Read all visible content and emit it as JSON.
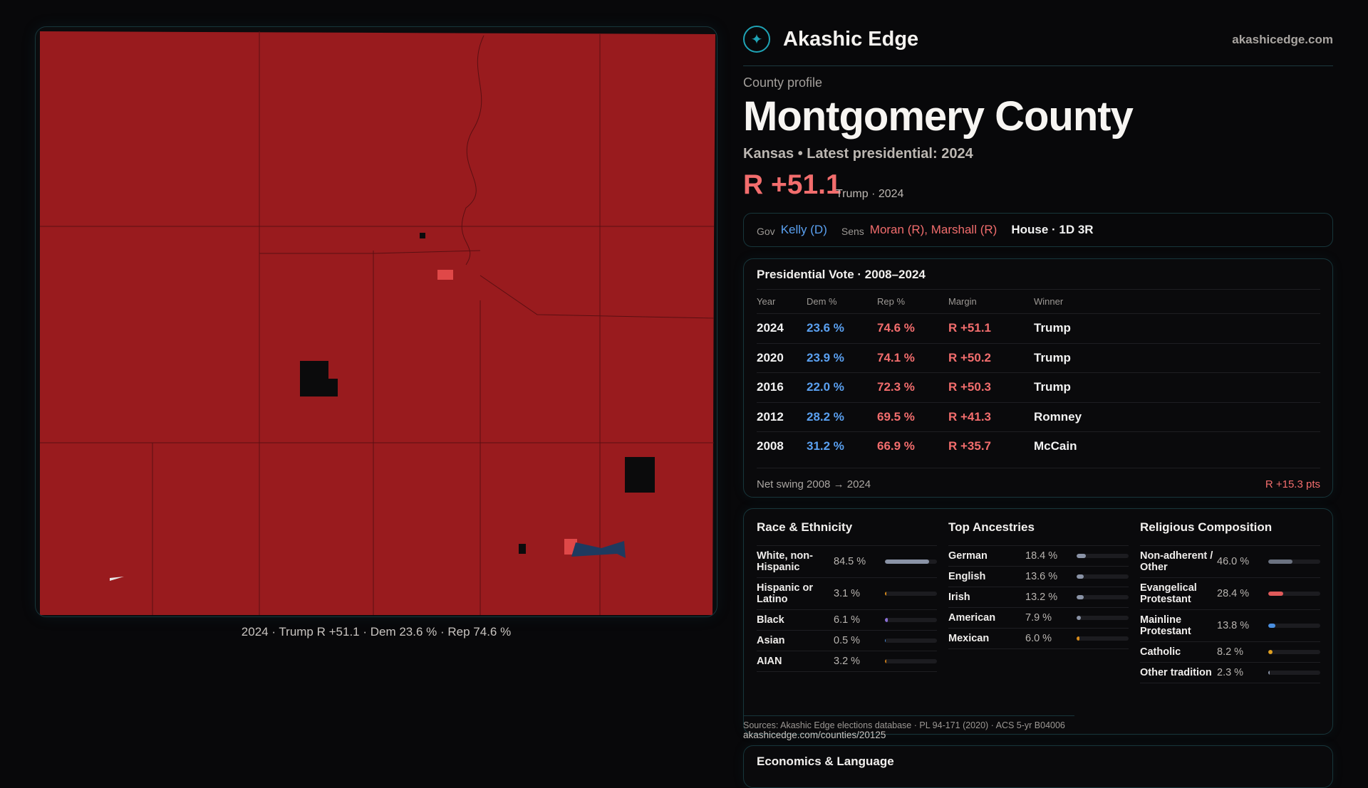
{
  "brand": {
    "name": "Akashic Edge",
    "site": "akashicedge.com",
    "logo_icon": "compass-emblem-icon",
    "accent": "#1fa3b5"
  },
  "profile": {
    "eyebrow": "County profile",
    "title": "Montgomery County",
    "subtitle": "Kansas • Latest presidential: 2024",
    "margin": "R +51.1",
    "margin_note": "Trump · 2024"
  },
  "officials": {
    "gov_label": "Gov",
    "gov": "Kelly (D)",
    "sens_label": "Sens",
    "sens": "Moran (R), Marshall (R)",
    "house": "House · 1D 3R"
  },
  "presidential": {
    "title": "Presidential Vote · 2008–2024",
    "headers": [
      "Year",
      "Dem %",
      "Rep %",
      "Margin",
      "Winner"
    ],
    "rows": [
      {
        "year": "2024",
        "dem": "23.6 %",
        "rep": "74.6 %",
        "margin": "R +51.1",
        "winner": "Trump"
      },
      {
        "year": "2020",
        "dem": "23.9 %",
        "rep": "74.1 %",
        "margin": "R +50.2",
        "winner": "Trump"
      },
      {
        "year": "2016",
        "dem": "22.0 %",
        "rep": "72.3 %",
        "margin": "R +50.3",
        "winner": "Trump"
      },
      {
        "year": "2012",
        "dem": "28.2 %",
        "rep": "69.5 %",
        "margin": "R +41.3",
        "winner": "Romney"
      },
      {
        "year": "2008",
        "dem": "31.2 %",
        "rep": "66.9 %",
        "margin": "R +35.7",
        "winner": "McCain"
      }
    ],
    "swing_label": "Net swing 2008 → 2024",
    "swing_value": "R +15.3 pts"
  },
  "demographics": [
    {
      "title": "Race & Ethnicity",
      "items": [
        {
          "label": "White, non-Hispanic",
          "value": "84.5 %",
          "pct": 84.5,
          "color": "#8a93a6"
        },
        {
          "label": "Hispanic or Latino",
          "value": "3.1 %",
          "pct": 3.1,
          "color": "#d98b1a"
        },
        {
          "label": "Black",
          "value": "6.1 %",
          "pct": 6.1,
          "color": "#8b6fd6"
        },
        {
          "label": "Asian",
          "value": "0.5 %",
          "pct": 0.5,
          "color": "#4a8fe0"
        },
        {
          "label": "AIAN",
          "value": "3.2 %",
          "pct": 3.2,
          "color": "#c77a1a"
        }
      ]
    },
    {
      "title": "Top Ancestries",
      "items": [
        {
          "label": "German",
          "value": "18.4 %",
          "pct": 18.4,
          "color": "#8a93a6"
        },
        {
          "label": "English",
          "value": "13.6 %",
          "pct": 13.6,
          "color": "#8a93a6"
        },
        {
          "label": "Irish",
          "value": "13.2 %",
          "pct": 13.2,
          "color": "#8a93a6"
        },
        {
          "label": "American",
          "value": "7.9 %",
          "pct": 7.9,
          "color": "#8a93a6"
        },
        {
          "label": "Mexican",
          "value": "6.0 %",
          "pct": 6.0,
          "color": "#d98b1a"
        }
      ]
    },
    {
      "title": "Religious Composition",
      "items": [
        {
          "label": "Non-adherent / Other",
          "value": "46.0 %",
          "pct": 46.0,
          "color": "#6b7280"
        },
        {
          "label": "Evangelical Protestant",
          "value": "28.4 %",
          "pct": 28.4,
          "color": "#e05a5a"
        },
        {
          "label": "Mainline Protestant",
          "value": "13.8 %",
          "pct": 13.8,
          "color": "#4a8fe0"
        },
        {
          "label": "Catholic",
          "value": "8.2 %",
          "pct": 8.2,
          "color": "#e0a020"
        },
        {
          "label": "Other tradition",
          "value": "2.3 %",
          "pct": 2.3,
          "color": "#8a93a6"
        }
      ]
    }
  ],
  "sources": "Sources: Akashic Edge elections database · PL 94-171 (2020) · ACS 5-yr B04006",
  "link": "akashicedge.com/counties/20125",
  "econ_title": "Economics & Language",
  "map": {
    "caption": "2024 · Trump R +51.1 · Dem 23.6 % · Rep 74.6 %",
    "colors": {
      "strong_rep": "#991b1e",
      "lean_rep": "#e04848",
      "dem": "#1e3a5f",
      "no_data": "#0b0b0c",
      "tie": "#e8e8e8"
    }
  }
}
